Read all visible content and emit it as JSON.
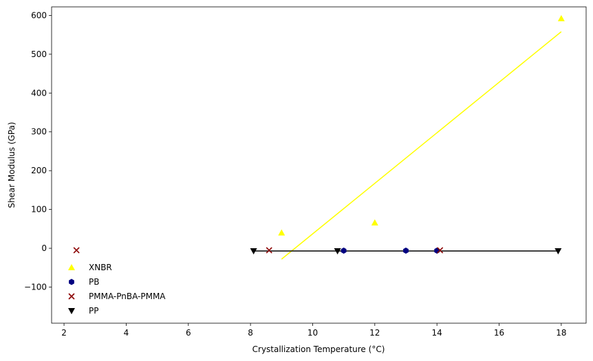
{
  "chart_data": {
    "type": "scatter",
    "title": "",
    "xlabel": "Crystallization Temperature (°C)",
    "ylabel": "Shear Modulus (GPa)",
    "xlim": [
      1.6,
      18.8
    ],
    "ylim": [
      -193,
      622
    ],
    "xticks": [
      2,
      4,
      6,
      8,
      10,
      12,
      14,
      16,
      18
    ],
    "yticks": [
      -100,
      0,
      100,
      200,
      300,
      400,
      500,
      600
    ],
    "grid": false,
    "legend_position": "lower-left",
    "series": [
      {
        "name": "XNBR",
        "marker": "triangle-up",
        "color": "#ffff00",
        "points": [
          [
            9,
            40
          ],
          [
            12,
            66
          ],
          [
            18,
            592
          ]
        ],
        "fit_line": [
          [
            9,
            -28
          ],
          [
            18,
            558
          ]
        ]
      },
      {
        "name": "PB",
        "marker": "hexagon",
        "color": "#000080",
        "points": [
          [
            11,
            -6
          ],
          [
            13,
            -6
          ],
          [
            14,
            -6
          ]
        ]
      },
      {
        "name": "PMMA-PnBA-PMMA",
        "marker": "x",
        "color": "#8b0000",
        "points": [
          [
            2.4,
            -5
          ],
          [
            8.6,
            -5
          ],
          [
            14.1,
            -5
          ]
        ]
      },
      {
        "name": "PP",
        "marker": "triangle-down",
        "color": "#000000",
        "points": [
          [
            8.1,
            -7
          ],
          [
            10.8,
            -7
          ],
          [
            17.9,
            -7
          ]
        ],
        "fit_line": [
          [
            8.1,
            -7
          ],
          [
            17.9,
            -7
          ]
        ]
      }
    ]
  }
}
